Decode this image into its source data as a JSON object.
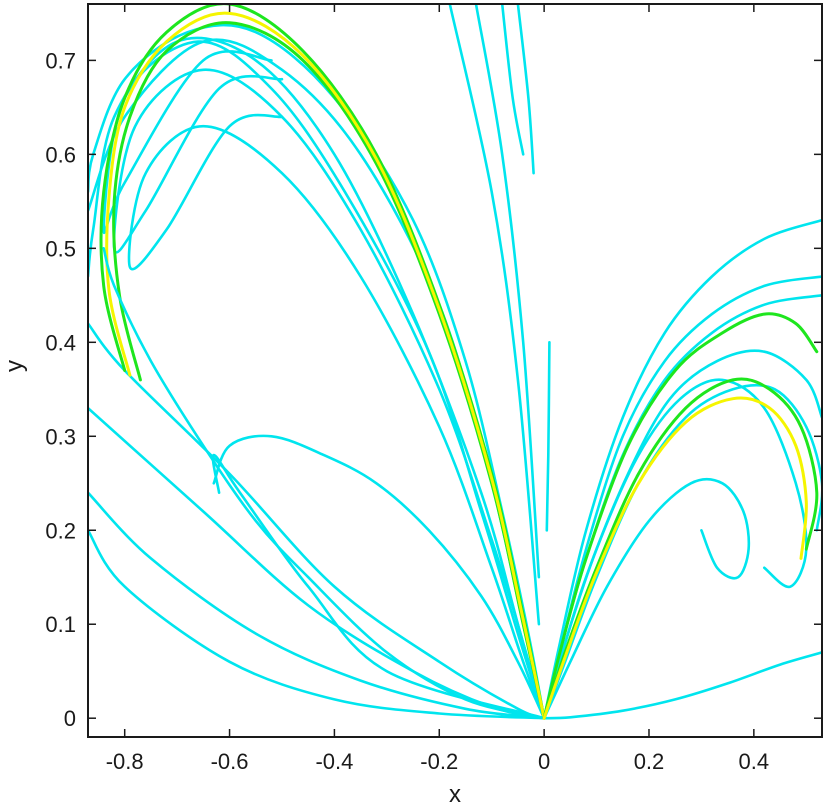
{
  "chart_data": {
    "type": "line",
    "title": "",
    "xlabel": "x",
    "ylabel": "y",
    "xlim": [
      -0.87,
      0.53
    ],
    "ylim": [
      -0.02,
      0.76
    ],
    "grid": false,
    "legend": "none",
    "xticks": [
      -0.8,
      -0.6,
      -0.4,
      -0.2,
      0,
      0.2,
      0.4
    ],
    "xtick_labels": [
      "-0.8",
      "-0.6",
      "-0.4",
      "-0.2",
      "0",
      "0.2",
      "0.4"
    ],
    "yticks": [
      0,
      0.1,
      0.2,
      0.3,
      0.4,
      0.5,
      0.6,
      0.7
    ],
    "ytick_labels": [
      "0",
      "0.1",
      "0.2",
      "0.3",
      "0.4",
      "0.5",
      "0.6",
      "0.7"
    ],
    "colors": {
      "cyan": "#00e5ee",
      "green": "#1ee61e",
      "yellow": "#f5f500",
      "axis": "#1a1a1a"
    },
    "series": [
      {
        "color": "cyan",
        "x": [
          0,
          -0.2,
          -0.4,
          -0.6,
          -0.8,
          -0.87
        ],
        "y": [
          0,
          0.005,
          0.02,
          0.06,
          0.14,
          0.2
        ]
      },
      {
        "color": "cyan",
        "x": [
          0,
          -0.15,
          -0.35,
          -0.55,
          -0.75,
          -0.87
        ],
        "y": [
          0,
          0.01,
          0.04,
          0.09,
          0.17,
          0.24
        ]
      },
      {
        "color": "cyan",
        "x": [
          0,
          -0.1,
          -0.25,
          -0.45,
          -0.65,
          -0.87
        ],
        "y": [
          0,
          0.012,
          0.05,
          0.12,
          0.22,
          0.33
        ]
      },
      {
        "color": "cyan",
        "x": [
          0,
          -0.05,
          -0.2,
          -0.4,
          -0.6,
          -0.8,
          -0.87
        ],
        "y": [
          0,
          0.01,
          0.06,
          0.14,
          0.26,
          0.37,
          0.42
        ]
      },
      {
        "color": "cyan",
        "x": [
          0,
          -0.3,
          -0.45,
          -0.58,
          -0.63,
          -0.62
        ],
        "y": [
          0,
          0.05,
          0.14,
          0.24,
          0.28,
          0.24
        ]
      },
      {
        "color": "cyan",
        "x": [
          0,
          -0.05,
          -0.12,
          -0.22,
          -0.32,
          -0.42,
          -0.52,
          -0.6,
          -0.63
        ],
        "y": [
          0,
          0.06,
          0.13,
          0.2,
          0.25,
          0.28,
          0.3,
          0.29,
          0.25
        ]
      },
      {
        "color": "cyan",
        "x": [
          0,
          -0.04,
          -0.1,
          -0.2,
          -0.35,
          -0.5,
          -0.65,
          -0.76,
          -0.79,
          -0.72,
          -0.6,
          -0.5
        ],
        "y": [
          0,
          0.06,
          0.16,
          0.31,
          0.47,
          0.58,
          0.63,
          0.58,
          0.48,
          0.52,
          0.63,
          0.64
        ]
      },
      {
        "color": "cyan",
        "x": [
          0,
          -0.04,
          -0.1,
          -0.2,
          -0.35,
          -0.5,
          -0.65,
          -0.78,
          -0.82,
          -0.76,
          -0.62,
          -0.5
        ],
        "y": [
          0,
          0.08,
          0.19,
          0.35,
          0.52,
          0.64,
          0.69,
          0.63,
          0.5,
          0.54,
          0.67,
          0.68
        ]
      },
      {
        "color": "cyan",
        "x": [
          0,
          -0.05,
          -0.12,
          -0.22,
          -0.38,
          -0.52,
          -0.66,
          -0.8,
          -0.84,
          -0.8,
          -0.65,
          -0.52
        ],
        "y": [
          0,
          0.09,
          0.22,
          0.39,
          0.56,
          0.67,
          0.72,
          0.66,
          0.52,
          0.57,
          0.7,
          0.7
        ]
      },
      {
        "color": "cyan",
        "x": [
          0,
          -0.05,
          -0.12,
          -0.25,
          -0.4,
          -0.55,
          -0.7,
          -0.82,
          -0.86,
          -0.87
        ],
        "y": [
          0,
          0.1,
          0.24,
          0.43,
          0.6,
          0.7,
          0.72,
          0.64,
          0.52,
          0.47
        ]
      },
      {
        "color": "cyan",
        "x": [
          0,
          -0.04,
          -0.1,
          -0.2,
          -0.35,
          -0.5,
          -0.65,
          -0.8,
          -0.87
        ],
        "y": [
          0,
          0.1,
          0.25,
          0.44,
          0.6,
          0.69,
          0.72,
          0.64,
          0.54
        ]
      },
      {
        "color": "cyan",
        "x": [
          0,
          -0.03,
          -0.08,
          -0.15,
          -0.25,
          -0.4,
          -0.55,
          -0.68,
          -0.8,
          -0.86,
          -0.87
        ],
        "y": [
          0,
          0.09,
          0.22,
          0.38,
          0.53,
          0.66,
          0.73,
          0.73,
          0.68,
          0.6,
          0.56
        ]
      },
      {
        "color": "green",
        "x": [
          0,
          -0.04,
          -0.1,
          -0.2,
          -0.32,
          -0.46,
          -0.6,
          -0.72,
          -0.8,
          -0.84,
          -0.84,
          -0.8
        ],
        "y": [
          0,
          0.11,
          0.26,
          0.44,
          0.6,
          0.71,
          0.76,
          0.73,
          0.66,
          0.56,
          0.46,
          0.37
        ]
      },
      {
        "color": "green",
        "x": [
          0,
          -0.04,
          -0.1,
          -0.2,
          -0.32,
          -0.46,
          -0.6,
          -0.72,
          -0.79,
          -0.82,
          -0.81,
          -0.77
        ],
        "y": [
          0,
          0.1,
          0.25,
          0.43,
          0.59,
          0.7,
          0.74,
          0.71,
          0.64,
          0.55,
          0.45,
          0.36
        ]
      },
      {
        "color": "yellow",
        "x": [
          0,
          -0.04,
          -0.1,
          -0.2,
          -0.32,
          -0.46,
          -0.6,
          -0.72,
          -0.8,
          -0.83,
          -0.83,
          -0.79
        ],
        "y": [
          0,
          0.105,
          0.255,
          0.435,
          0.595,
          0.705,
          0.75,
          0.72,
          0.65,
          0.555,
          0.455,
          0.365
        ]
      },
      {
        "color": "cyan",
        "x": [
          0,
          -0.15,
          -0.3,
          -0.45,
          -0.55,
          -0.65,
          -0.75,
          -0.82,
          -0.84
        ],
        "y": [
          0,
          0.02,
          0.07,
          0.15,
          0.21,
          0.29,
          0.38,
          0.46,
          0.5
        ]
      },
      {
        "color": "cyan",
        "x": [
          -0.08,
          -0.06,
          -0.04
        ],
        "y": [
          0.76,
          0.66,
          0.6
        ]
      },
      {
        "color": "cyan",
        "x": [
          -0.05,
          -0.03,
          -0.02
        ],
        "y": [
          0.76,
          0.66,
          0.58
        ]
      },
      {
        "color": "cyan",
        "x": [
          -0.13,
          -0.08,
          -0.04,
          -0.01
        ],
        "y": [
          0.76,
          0.6,
          0.4,
          0.15
        ]
      },
      {
        "color": "cyan",
        "x": [
          -0.18,
          -0.1,
          -0.05,
          -0.01
        ],
        "y": [
          0.76,
          0.56,
          0.36,
          0.1
        ]
      },
      {
        "color": "cyan",
        "x": [
          0.005,
          0.008,
          0.01
        ],
        "y": [
          0.2,
          0.28,
          0.4
        ]
      },
      {
        "color": "cyan",
        "x": [
          0,
          0.05,
          0.15,
          0.25,
          0.35,
          0.45,
          0.53
        ],
        "y": [
          0,
          0.001,
          0.008,
          0.02,
          0.037,
          0.057,
          0.07
        ]
      },
      {
        "color": "cyan",
        "x": [
          0,
          0.05,
          0.12,
          0.2,
          0.28,
          0.34,
          0.38,
          0.39,
          0.37,
          0.33,
          0.3
        ],
        "y": [
          0,
          0.06,
          0.14,
          0.21,
          0.25,
          0.25,
          0.22,
          0.18,
          0.15,
          0.16,
          0.2
        ]
      },
      {
        "color": "cyan",
        "x": [
          0,
          0.04,
          0.1,
          0.18,
          0.26,
          0.34,
          0.42,
          0.48,
          0.5,
          0.47,
          0.42
        ],
        "y": [
          0,
          0.08,
          0.18,
          0.28,
          0.34,
          0.36,
          0.33,
          0.25,
          0.18,
          0.14,
          0.16
        ]
      },
      {
        "color": "cyan",
        "x": [
          0,
          0.03,
          0.08,
          0.15,
          0.23,
          0.32,
          0.42,
          0.53
        ],
        "y": [
          0,
          0.08,
          0.2,
          0.32,
          0.41,
          0.47,
          0.51,
          0.53
        ]
      },
      {
        "color": "cyan",
        "x": [
          0,
          0.03,
          0.08,
          0.15,
          0.23,
          0.32,
          0.42,
          0.53
        ],
        "y": [
          0,
          0.07,
          0.18,
          0.3,
          0.38,
          0.43,
          0.46,
          0.47
        ]
      },
      {
        "color": "cyan",
        "x": [
          0,
          0.03,
          0.08,
          0.15,
          0.23,
          0.32,
          0.42,
          0.53
        ],
        "y": [
          0,
          0.07,
          0.17,
          0.28,
          0.36,
          0.41,
          0.44,
          0.45
        ]
      },
      {
        "color": "cyan",
        "x": [
          0,
          0.03,
          0.08,
          0.16,
          0.24,
          0.33,
          0.42,
          0.5,
          0.53
        ],
        "y": [
          0,
          0.06,
          0.15,
          0.26,
          0.34,
          0.38,
          0.39,
          0.36,
          0.32
        ]
      },
      {
        "color": "cyan",
        "x": [
          0,
          0.04,
          0.1,
          0.18,
          0.27,
          0.36,
          0.44,
          0.5,
          0.53,
          0.52
        ],
        "y": [
          0,
          0.06,
          0.15,
          0.25,
          0.32,
          0.35,
          0.35,
          0.31,
          0.25,
          0.2
        ]
      },
      {
        "color": "green",
        "x": [
          0,
          0.03,
          0.08,
          0.16,
          0.25,
          0.34,
          0.42,
          0.48,
          0.52
        ],
        "y": [
          0,
          0.07,
          0.17,
          0.29,
          0.37,
          0.41,
          0.43,
          0.42,
          0.39
        ]
      },
      {
        "color": "green",
        "x": [
          0,
          0.04,
          0.1,
          0.18,
          0.27,
          0.36,
          0.43,
          0.49,
          0.52,
          0.5
        ],
        "y": [
          0,
          0.07,
          0.16,
          0.26,
          0.33,
          0.36,
          0.35,
          0.31,
          0.24,
          0.18
        ]
      },
      {
        "color": "yellow",
        "x": [
          0,
          0.04,
          0.1,
          0.18,
          0.27,
          0.36,
          0.43,
          0.48,
          0.5,
          0.49
        ],
        "y": [
          0,
          0.065,
          0.155,
          0.25,
          0.315,
          0.34,
          0.33,
          0.29,
          0.23,
          0.17
        ]
      }
    ]
  }
}
